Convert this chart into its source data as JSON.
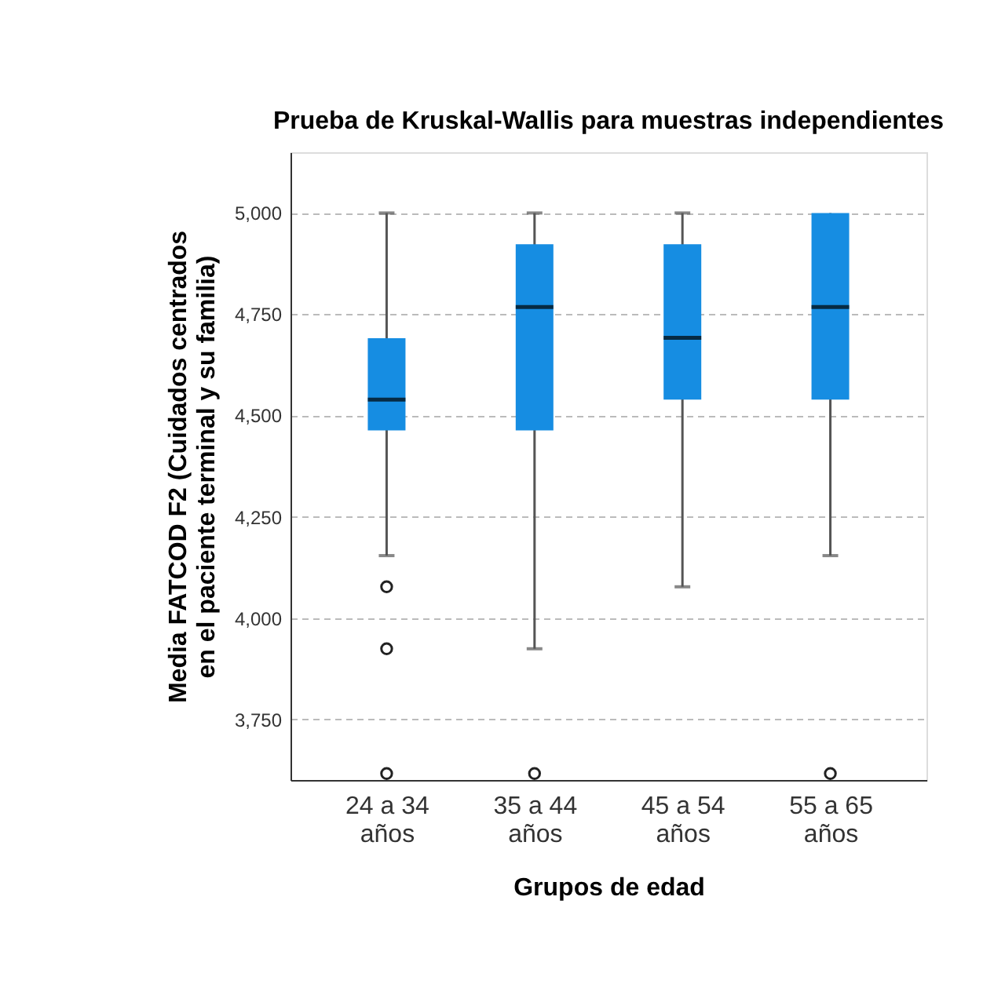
{
  "chart_data": {
    "type": "box",
    "title": "Prueba de Kruskal-Wallis para muestras independientes",
    "xlabel": "Grupos de edad",
    "ylabel": "Media FATCOD F2 (Cuidados centrados en el paciente terminal y su familia)",
    "categories": [
      "24 a 34 años",
      "35 a 44 años",
      "45 a 54 años",
      "55 a 65 años"
    ],
    "series": [
      {
        "color": "#168de2",
        "boxes": [
          {
            "low": 4154,
            "q1": 4463,
            "median": 4539,
            "q3": 4691,
            "high": 5000,
            "outliers": [
              4077,
              3924,
              3616
            ]
          },
          {
            "low": 3924,
            "q1": 4463,
            "median": 4768,
            "q3": 4923,
            "high": 5000,
            "outliers": [
              3616
            ]
          },
          {
            "low": 4077,
            "q1": 4539,
            "median": 4692,
            "q3": 4923,
            "high": 5000
          },
          {
            "low": 4154,
            "q1": 4539,
            "median": 4768,
            "q3": 5000,
            "high": 5000,
            "outliers": [
              3616
            ]
          }
        ]
      }
    ],
    "ylim": [
      3600,
      5150
    ],
    "yticks": [
      {
        "value": 3750,
        "label": "3,750"
      },
      {
        "value": 4000,
        "label": "4,000"
      },
      {
        "value": 4250,
        "label": "4,250"
      },
      {
        "value": 4500,
        "label": "4,500"
      },
      {
        "value": 4750,
        "label": "4,750"
      },
      {
        "value": 5000,
        "label": "5,000"
      }
    ],
    "grid": "y"
  }
}
